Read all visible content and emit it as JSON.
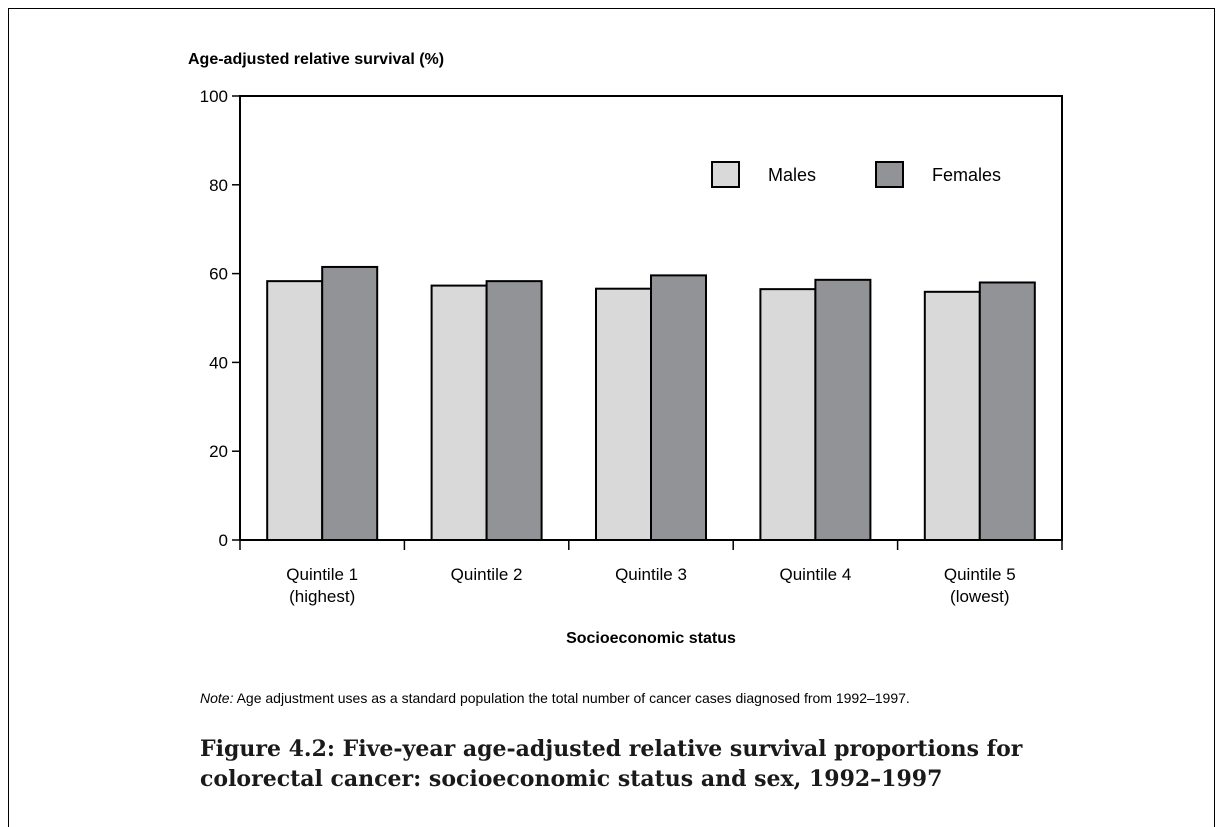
{
  "chart_data": {
    "type": "bar",
    "ylabel": "Age-adjusted relative survival (%)",
    "xlabel": "Socioeconomic status",
    "ylim": [
      0,
      100
    ],
    "yticks": [
      0,
      20,
      40,
      60,
      80,
      100
    ],
    "categories": [
      [
        "Quintile 1",
        "(highest)"
      ],
      [
        "Quintile 2"
      ],
      [
        "Quintile 3"
      ],
      [
        "Quintile 4"
      ],
      [
        "Quintile 5",
        "(lowest)"
      ]
    ],
    "series": [
      {
        "name": "Males",
        "color": "#d9d9d9",
        "values": [
          58.3,
          57.3,
          56.6,
          56.5,
          55.9
        ]
      },
      {
        "name": "Females",
        "color": "#929396",
        "values": [
          61.5,
          58.3,
          59.6,
          58.6,
          58.0
        ]
      }
    ],
    "legend_position": "top-right",
    "grid": false
  },
  "note": {
    "label": "Note:",
    "text": " Age adjustment uses as a standard population the total number of cancer cases diagnosed from 1992–1997."
  },
  "caption": "Figure 4.2: Five-year age-adjusted relative survival proportions for colorectal cancer: socioeconomic status and sex, 1992–1997"
}
